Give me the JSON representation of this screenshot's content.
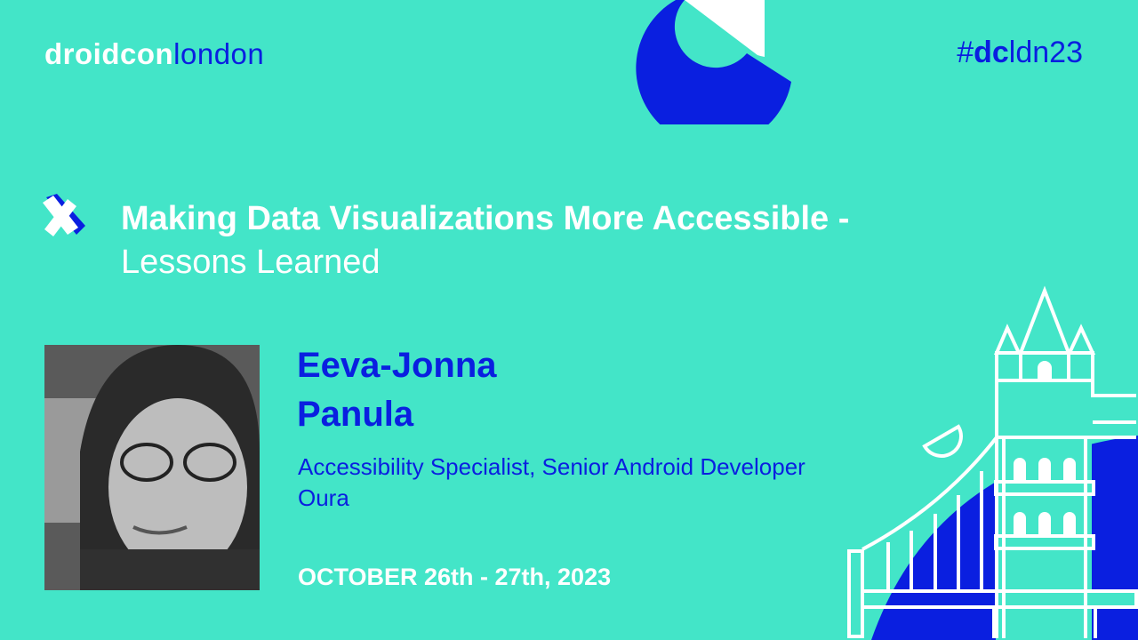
{
  "brand": {
    "logo_bold": "droidcon",
    "logo_light": "london",
    "hashtag_prefix": "#",
    "hashtag_bold": "dc",
    "hashtag_rest": "ldn23"
  },
  "talk": {
    "title": "Making Data Visualizations More Accessible -",
    "subtitle": "Lessons Learned"
  },
  "speaker": {
    "name_line1": "Eeva-Jonna",
    "name_line2": "Panula",
    "role": "Accessibility Specialist, Senior Android Developer",
    "company": "Oura"
  },
  "event": {
    "date": "OCTOBER 26th - 27th, 2023"
  },
  "colors": {
    "background": "#43e5c8",
    "accent": "#0a1fe0",
    "text": "#ffffff"
  }
}
